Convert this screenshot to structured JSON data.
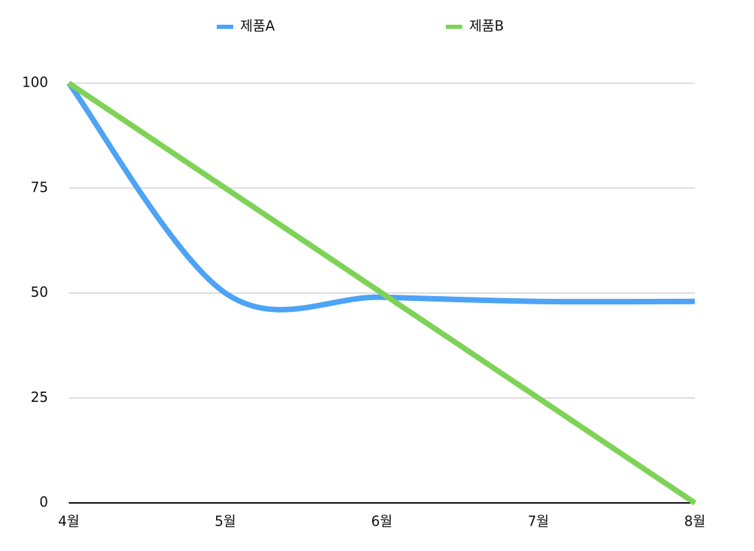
{
  "chart_data": {
    "type": "line",
    "categories": [
      "4월",
      "5월",
      "6월",
      "7월",
      "8월"
    ],
    "series": [
      {
        "name": "제품A",
        "color": "#4da3f5",
        "values": [
          100,
          50,
          49,
          48,
          48
        ]
      },
      {
        "name": "제품B",
        "color": "#7ed357",
        "values": [
          100,
          75,
          50,
          25,
          0
        ]
      }
    ],
    "ylim": [
      0,
      100
    ],
    "yticks": [
      0,
      25,
      50,
      75,
      100
    ],
    "grid": true,
    "smooth": true,
    "legend": "top"
  }
}
